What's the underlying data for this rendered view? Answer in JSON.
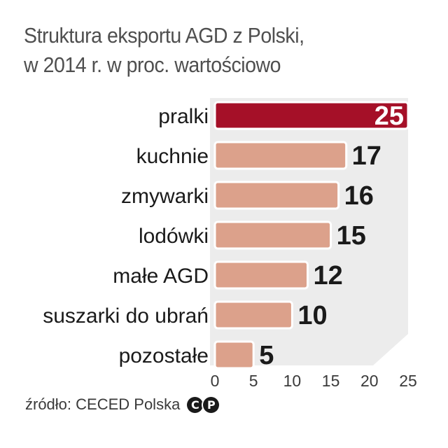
{
  "header": {
    "title_line1": "Struktura eksportu AGD z Polski,",
    "title_line2": "w 2014 r. w proc. wartościowo"
  },
  "footer": {
    "source": "źródło: CECED Polska",
    "copyright_c": "C",
    "copyright_p": "P"
  },
  "colors": {
    "highlight_bar": "#a51028",
    "bar": "#dca18b",
    "bar_stroke": "#ffffff",
    "panel": "#ececec",
    "label": "#1a1a1a",
    "value_on_highlight": "#ffffff"
  },
  "chart_data": {
    "type": "bar",
    "orientation": "horizontal",
    "categories": [
      "pralki",
      "kuchnie",
      "zmywarki",
      "lodówki",
      "małe AGD",
      "suszarki do ubrań",
      "pozostałe"
    ],
    "values": [
      25,
      17,
      16,
      15,
      12,
      10,
      5
    ],
    "value_labels": [
      "25",
      "17",
      "16",
      "15",
      "12",
      "10",
      "5"
    ],
    "highlight_index": 0,
    "xlim": [
      0,
      25
    ],
    "xticks": [
      "0",
      "5",
      "10",
      "15",
      "20",
      "25"
    ],
    "grid": false
  }
}
